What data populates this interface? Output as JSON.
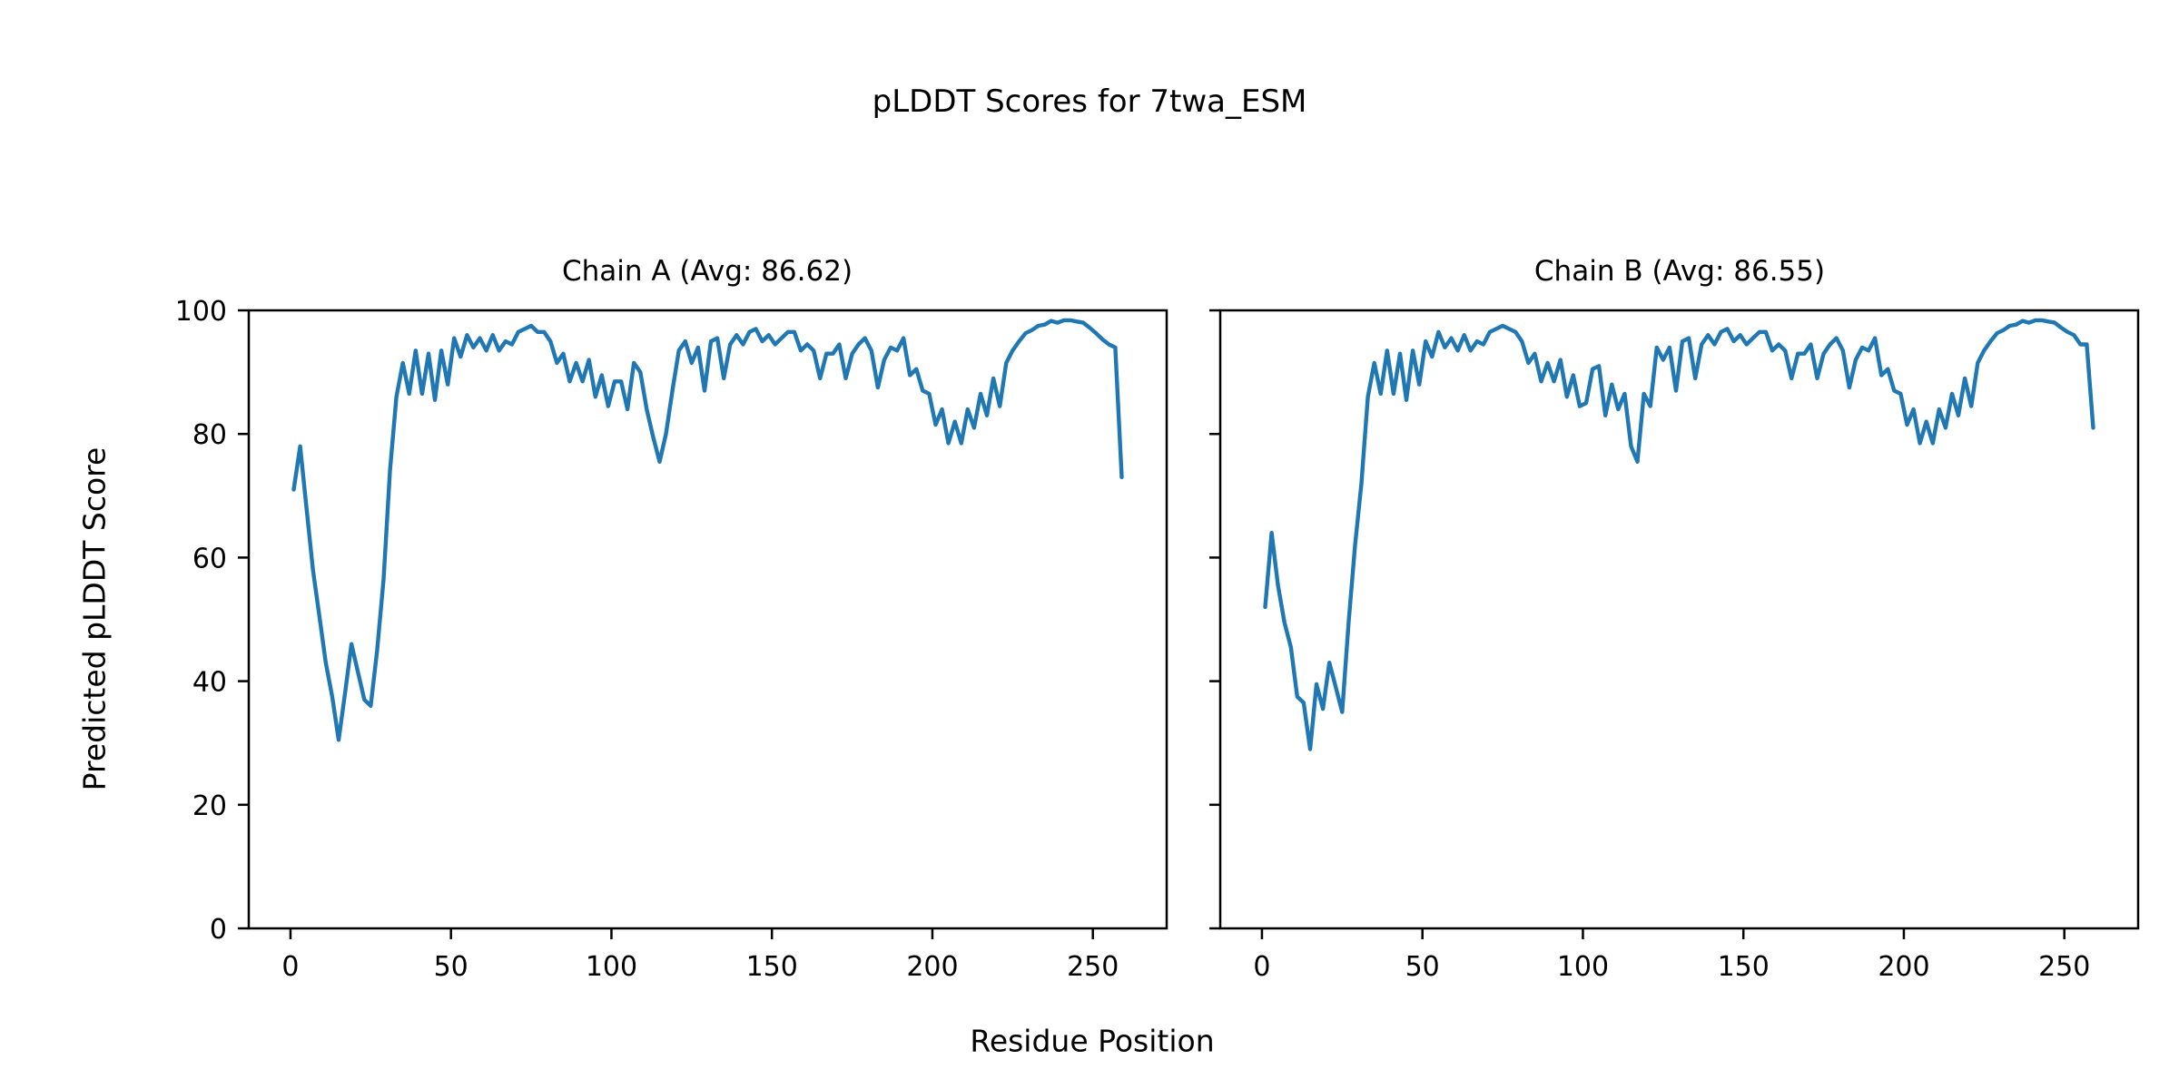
{
  "figure": {
    "title": "pLDDT Scores for 7twa_ESM",
    "background_color": "#ffffff",
    "text_color": "#000000"
  },
  "axes": {
    "x_label": "Residue Position",
    "y_label": "Predicted pLDDT Score",
    "x_ticks": [
      0,
      50,
      100,
      150,
      200,
      250
    ],
    "y_ticks": [
      0,
      20,
      40,
      60,
      80,
      100
    ],
    "xlim": [
      -13,
      273
    ],
    "ylim": [
      0,
      100
    ],
    "line_color": "#1f77b4",
    "spine_color": "#000000",
    "grid": false,
    "legend": "none"
  },
  "chart_data": [
    {
      "type": "line",
      "title": "Chain A (Avg: 86.62)",
      "series_name": "Chain A pLDDT",
      "avg": 86.62,
      "show_y_tick_labels": true,
      "x_start": 1,
      "x_step": 2,
      "values": [
        71,
        78,
        68,
        58,
        50.5,
        43,
        37.5,
        30.5,
        38,
        46,
        41.5,
        37,
        36,
        45,
        56.5,
        74,
        86,
        91.5,
        86.5,
        93.5,
        86.5,
        93,
        85.5,
        93.5,
        88,
        95.5,
        92.5,
        96,
        94,
        95.5,
        93.5,
        96,
        93.5,
        95,
        94.5,
        96.5,
        97,
        97.5,
        96.5,
        96.5,
        95,
        91.5,
        93,
        88.5,
        91.5,
        88.5,
        92,
        86,
        89.5,
        84.5,
        88.5,
        88.5,
        84,
        91.5,
        90,
        84,
        79.5,
        75.5,
        80,
        87,
        93.5,
        95,
        91.5,
        94,
        87,
        95,
        95.5,
        89,
        94.5,
        96,
        94.5,
        96.5,
        97,
        95,
        96,
        94.5,
        95.5,
        96.5,
        96.5,
        93.5,
        94.5,
        93.5,
        89,
        93,
        93,
        94.5,
        89,
        93,
        94.5,
        95.5,
        93.5,
        87.5,
        92,
        94,
        93.5,
        95.5,
        89.5,
        90.5,
        87,
        86.5,
        81.5,
        84,
        78.5,
        82,
        78.5,
        84,
        81,
        86.5,
        83,
        89,
        84.5,
        91.5,
        93.5,
        95,
        96.3,
        96.8,
        97.5,
        97.7,
        98.3,
        98,
        98.4,
        98.4,
        98.2,
        98,
        97.2,
        96.3,
        95.3,
        94.5,
        94,
        73
      ]
    },
    {
      "type": "line",
      "title": "Chain B (Avg: 86.55)",
      "series_name": "Chain B pLDDT",
      "avg": 86.55,
      "show_y_tick_labels": false,
      "x_start": 1,
      "x_step": 2,
      "values": [
        52,
        64,
        55.5,
        49.5,
        45.5,
        37.5,
        36.5,
        29,
        39.5,
        35.5,
        43,
        39,
        35,
        49.5,
        62,
        72,
        86,
        91.5,
        86.5,
        93.5,
        86.5,
        93,
        85.5,
        93.5,
        88,
        95,
        92.5,
        96.5,
        94,
        95.5,
        93.5,
        96,
        93.5,
        95,
        94.5,
        96.5,
        97,
        97.5,
        97,
        96.5,
        95,
        91.5,
        93,
        88.5,
        91.5,
        88.5,
        92,
        86,
        89.5,
        84.5,
        85,
        90.5,
        91,
        83,
        88,
        84,
        86.5,
        78,
        75.5,
        86.5,
        84.5,
        94,
        92,
        94,
        87,
        95,
        95.5,
        89,
        94.5,
        96,
        94.5,
        96.5,
        97,
        95,
        96,
        94.5,
        95.5,
        96.5,
        96.5,
        93.5,
        94.5,
        93.5,
        89,
        93,
        93,
        94.5,
        89,
        93,
        94.5,
        95.5,
        93.5,
        87.5,
        92,
        94,
        93.5,
        95.5,
        89.5,
        90.5,
        87,
        86.5,
        81.5,
        84,
        78.5,
        82,
        78.5,
        84,
        81,
        86.5,
        83,
        89,
        84.5,
        91.5,
        93.5,
        95,
        96.3,
        96.8,
        97.5,
        97.7,
        98.3,
        98,
        98.4,
        98.4,
        98.2,
        98,
        97.2,
        96.5,
        96,
        94.5,
        94.5,
        81
      ]
    }
  ]
}
